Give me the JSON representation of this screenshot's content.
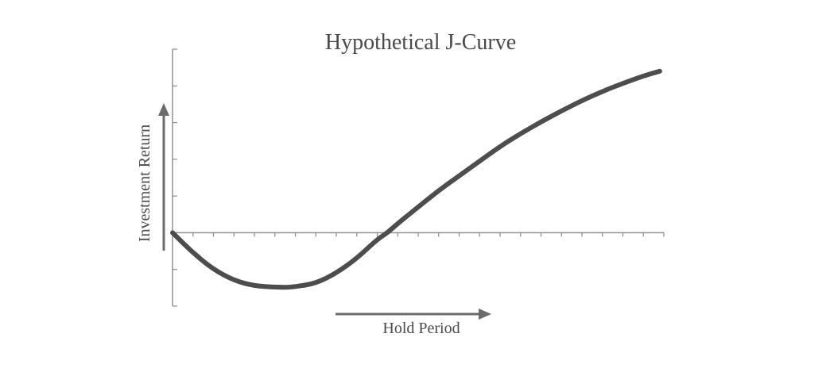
{
  "chart_data": {
    "type": "line",
    "title": "Hypothetical J-Curve",
    "xlabel": "Hold Period",
    "ylabel": "Investment Return",
    "xlim": [
      0,
      24
    ],
    "ylim": [
      -2,
      5
    ],
    "grid": false,
    "legend": "none",
    "ticks": {
      "y_count": 7,
      "x_count": 24
    },
    "series": [
      {
        "color": "#4d4d4d",
        "x": [
          0,
          1,
          2,
          3,
          4,
          5,
          5.5,
          6,
          7,
          8,
          9,
          10,
          10.5,
          11,
          12,
          13,
          14,
          15,
          16,
          17,
          18,
          19,
          20,
          21,
          22,
          23,
          23.8
        ],
        "y": [
          0,
          -0.55,
          -1.0,
          -1.3,
          -1.45,
          -1.48,
          -1.49,
          -1.47,
          -1.38,
          -1.1,
          -0.7,
          -0.18,
          0.0,
          0.25,
          0.7,
          1.15,
          1.55,
          1.95,
          2.35,
          2.7,
          3.02,
          3.32,
          3.6,
          3.85,
          4.07,
          4.27,
          4.4
        ]
      }
    ]
  }
}
